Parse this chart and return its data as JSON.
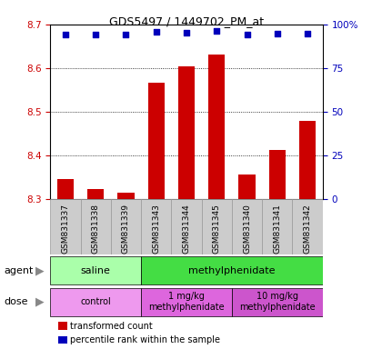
{
  "title": "GDS5497 / 1449702_PM_at",
  "samples": [
    "GSM831337",
    "GSM831338",
    "GSM831339",
    "GSM831343",
    "GSM831344",
    "GSM831345",
    "GSM831340",
    "GSM831341",
    "GSM831342"
  ],
  "bar_values": [
    8.345,
    8.323,
    8.315,
    8.567,
    8.603,
    8.63,
    8.357,
    8.412,
    8.478
  ],
  "percentile_values": [
    0.94,
    0.94,
    0.94,
    0.96,
    0.955,
    0.965,
    0.94,
    0.945,
    0.945
  ],
  "ylim_left": [
    8.3,
    8.7
  ],
  "ylim_right": [
    0.0,
    1.0
  ],
  "yticks_left": [
    8.3,
    8.4,
    8.5,
    8.6,
    8.7
  ],
  "yticks_right": [
    0.0,
    0.25,
    0.5,
    0.75,
    1.0
  ],
  "ytick_labels_right": [
    "0",
    "25",
    "50",
    "75",
    "100%"
  ],
  "bar_color": "#cc0000",
  "dot_color": "#0000bb",
  "bar_bottom": 8.3,
  "agent_groups": [
    {
      "label": "saline",
      "start": 0,
      "end": 3,
      "color": "#aaffaa"
    },
    {
      "label": "methylphenidate",
      "start": 3,
      "end": 9,
      "color": "#44dd44"
    }
  ],
  "dose_groups": [
    {
      "label": "control",
      "start": 0,
      "end": 3,
      "color": "#ee99ee"
    },
    {
      "label": "1 mg/kg\nmethylphenidate",
      "start": 3,
      "end": 6,
      "color": "#dd66dd"
    },
    {
      "label": "10 mg/kg\nmethylphenidate",
      "start": 6,
      "end": 9,
      "color": "#cc55cc"
    }
  ],
  "legend_items": [
    {
      "color": "#cc0000",
      "label": "transformed count"
    },
    {
      "color": "#0000bb",
      "label": "percentile rank within the sample"
    }
  ],
  "title_color": "#000000",
  "tick_color_left": "#cc0000",
  "tick_color_right": "#0000bb",
  "sample_box_color": "#cccccc",
  "sample_box_edge": "#999999"
}
